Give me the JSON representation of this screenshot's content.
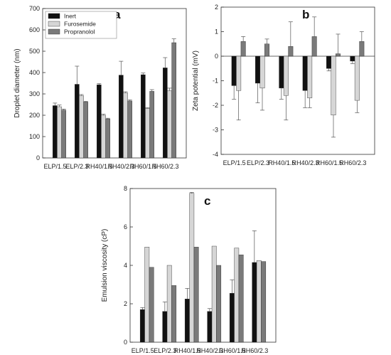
{
  "colors": {
    "Inert": "#111111",
    "Furosemide": "#d6d6d6",
    "Propranolol": "#7a7a7a"
  },
  "chart_data": [
    {
      "type": "bar",
      "panel": "a",
      "categories": [
        "ELP/1.5",
        "ELP/2.3",
        "RH40/1.5",
        "RH40/2.3",
        "RH60/1.5",
        "RH60/2.3"
      ],
      "ylabel": "Droplet diameter (nm)",
      "ylim": [
        0,
        700
      ],
      "yticks": [
        0,
        100,
        200,
        300,
        400,
        500,
        600,
        700
      ],
      "legend": [
        "Inert",
        "Furosemide",
        "Propranolol"
      ],
      "legend_position": "top-left",
      "series": [
        {
          "name": "Inert",
          "values": [
            245,
            345,
            343,
            388,
            390,
            422
          ],
          "errors": [
            12,
            85,
            5,
            65,
            8,
            48
          ]
        },
        {
          "name": "Furosemide",
          "values": [
            240,
            292,
            200,
            305,
            232,
            315
          ],
          "errors": [
            8,
            5,
            5,
            5,
            3,
            12
          ]
        },
        {
          "name": "Propranolol",
          "values": [
            224,
            262,
            183,
            267,
            312,
            540
          ],
          "errors": [
            5,
            3,
            3,
            5,
            8,
            18
          ]
        }
      ]
    },
    {
      "type": "bar",
      "panel": "b",
      "categories": [
        "ELP/1.5",
        "ELP/2.3",
        "RH40/1.5",
        "RH40/2.3",
        "RH60/1.5",
        "RH60/2.3"
      ],
      "ylabel": "Zeta potential (mV)",
      "ylim": [
        -4,
        2
      ],
      "yticks": [
        -4,
        -3,
        -2,
        -1,
        0,
        1,
        2
      ],
      "series": [
        {
          "name": "Inert",
          "values": [
            -1.2,
            -1.1,
            -1.3,
            -1.4,
            -0.5,
            -0.2
          ],
          "errors": [
            0.55,
            0.8,
            0.45,
            0.7,
            0.1,
            0.1
          ]
        },
        {
          "name": "Furosemide",
          "values": [
            -1.4,
            -1.3,
            -1.6,
            -1.7,
            -2.4,
            -1.8
          ],
          "errors": [
            1.2,
            0.9,
            1.0,
            0.4,
            0.9,
            0.5
          ]
        },
        {
          "name": "Propranolol",
          "values": [
            0.6,
            0.5,
            0.4,
            0.8,
            0.1,
            0.6
          ],
          "errors": [
            0.2,
            0.2,
            1.0,
            0.8,
            0.8,
            0.4
          ]
        }
      ]
    },
    {
      "type": "bar",
      "panel": "c",
      "categories": [
        "ELP/1.5",
        "ELP/2.3",
        "RH40/1.5",
        "RH40/2.3",
        "RH60/1.5",
        "RH60/2.3"
      ],
      "ylabel": "Emulsion viscosity (cP)",
      "ylim": [
        0,
        8
      ],
      "yticks": [
        0,
        2,
        4,
        6,
        8
      ],
      "series": [
        {
          "name": "Inert",
          "values": [
            1.7,
            1.6,
            2.25,
            1.6,
            2.55,
            4.15
          ],
          "errors": [
            0.1,
            0.5,
            0.55,
            0.15,
            0.7,
            1.65
          ]
        },
        {
          "name": "Furosemide",
          "values": [
            4.95,
            4.0,
            7.75,
            5.0,
            4.9,
            4.25
          ],
          "errors": [
            0.0,
            0.0,
            0.05,
            0.0,
            0.0,
            0.0
          ]
        },
        {
          "name": "Propranolol",
          "values": [
            3.9,
            2.95,
            4.95,
            4.0,
            4.55,
            4.2
          ],
          "errors": [
            0.0,
            0.0,
            0.0,
            0.0,
            0.0,
            0.0
          ]
        }
      ]
    }
  ]
}
